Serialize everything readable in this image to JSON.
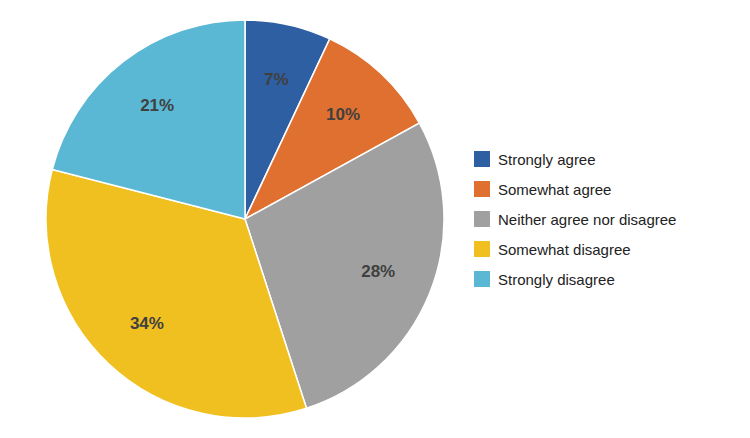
{
  "chart_data": {
    "type": "pie",
    "categories": [
      "Strongly agree",
      "Somewhat agree",
      "Neither agree nor disagree",
      "Somewhat disagree",
      "Strongly disagree"
    ],
    "values": [
      7,
      10,
      28,
      34,
      21
    ],
    "value_labels": [
      "7%",
      "10%",
      "28%",
      "34%",
      "21%"
    ],
    "colors": [
      "#2E5FA3",
      "#E07030",
      "#A0A0A0",
      "#F0C020",
      "#5BB8D4"
    ],
    "data_labels": true,
    "legend": "right"
  }
}
